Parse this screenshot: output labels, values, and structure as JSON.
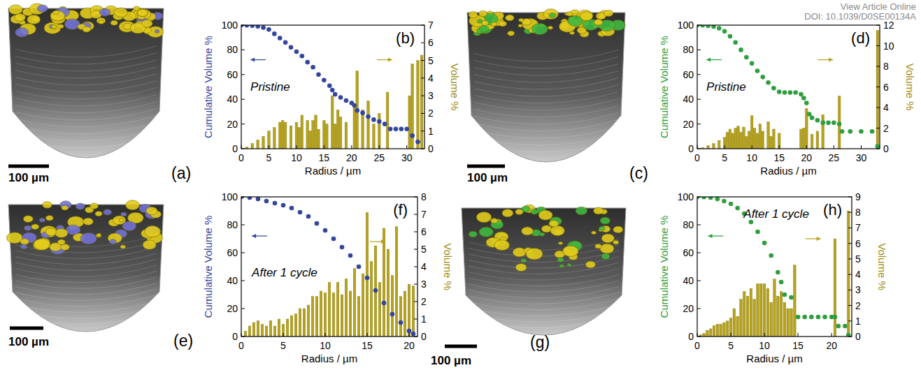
{
  "header": {
    "link": "View Article Online",
    "doi": "DOI: 10.1039/D0SE00134A"
  },
  "images": [
    {
      "label": "(a)",
      "scale_bar": "100 µm"
    },
    {
      "label": "(c)",
      "scale_bar": "100 µm"
    },
    {
      "label": "(e)",
      "scale_bar": "100 µm"
    },
    {
      "label": "(g)",
      "scale_bar": "100 µm"
    }
  ],
  "chart_data": [
    {
      "type": "scatter",
      "panel": "(b)",
      "annotation": "Pristine",
      "x_label": "Radius / µm",
      "y_label": "Cumulative Volume %",
      "y2_label": "Volume %",
      "xlim": [
        0,
        33.2
      ],
      "xticks": [
        0,
        5,
        10,
        15,
        20,
        25,
        30
      ],
      "ylim": [
        0,
        100
      ],
      "yticks": [
        0,
        20,
        40,
        60,
        80,
        100
      ],
      "y2lim": [
        0,
        7
      ],
      "y2ticks": [
        0,
        1,
        2,
        3,
        4,
        5,
        6,
        7
      ],
      "series": [
        {
          "type": "scatter",
          "marker": "circle",
          "color": "#34469c",
          "x": [
            0,
            1,
            2,
            3,
            4,
            5,
            6,
            7,
            8,
            9,
            10,
            11,
            12,
            13,
            14,
            15,
            16,
            16.5,
            17,
            18,
            19,
            20,
            20.5,
            21,
            22,
            23,
            24,
            25,
            26,
            27,
            28,
            29,
            30,
            31,
            32
          ],
          "values": [
            100,
            99.9,
            99.6,
            99,
            98,
            96.5,
            93,
            89.5,
            86,
            82,
            78.5,
            75,
            70,
            66,
            60,
            55.5,
            51,
            47.5,
            44,
            41.5,
            39,
            37,
            35,
            31,
            29,
            26,
            23.5,
            22,
            20,
            16,
            16,
            16,
            16,
            10.5,
            5.5
          ]
        },
        {
          "type": "bar",
          "axis": "y2",
          "color": "#b5a21e",
          "x": [
            1,
            2,
            3,
            4,
            5,
            6,
            7,
            7.5,
            8,
            9,
            10,
            10.5,
            11,
            12,
            12.5,
            13,
            13.5,
            14,
            15,
            15.5,
            16.5,
            17,
            17.5,
            18,
            19,
            20.5,
            21,
            22,
            23,
            24,
            25,
            26.5,
            30.5,
            31,
            32,
            32.7
          ],
          "values": [
            0.1,
            0.3,
            0.5,
            0.7,
            1.0,
            1.2,
            1.5,
            1.6,
            1.5,
            1.3,
            1.5,
            1.2,
            1.9,
            1.6,
            1.0,
            1.6,
            1.9,
            1.1,
            1.6,
            1.4,
            3.0,
            1.4,
            2.2,
            1.8,
            1.5,
            2.4,
            4.4,
            2.2,
            2.7,
            1.4,
            2.0,
            3.2,
            3.0,
            4.8,
            5.0,
            5.3
          ]
        }
      ]
    },
    {
      "type": "scatter",
      "panel": "(d)",
      "annotation": "Pristine",
      "x_label": "Radius / µm",
      "y_label": "Cumulative Volume %",
      "y2_label": "Volume %",
      "xlim": [
        0,
        33.4
      ],
      "xticks": [
        0,
        5,
        10,
        15,
        20,
        25,
        30
      ],
      "ylim": [
        0,
        100
      ],
      "yticks": [
        0,
        20,
        40,
        60,
        80,
        100
      ],
      "y2lim": [
        0,
        12
      ],
      "y2ticks": [
        0,
        2,
        4,
        6,
        8,
        10,
        12
      ],
      "series": [
        {
          "type": "scatter",
          "marker": "circle",
          "color": "#2e9e3e",
          "x": [
            0,
            1,
            2,
            3,
            4,
            5,
            6,
            7,
            8,
            9,
            10,
            11,
            12,
            13,
            14,
            15,
            16,
            17,
            18,
            19,
            19.5,
            20,
            20.5,
            21,
            22,
            23,
            24,
            25,
            26,
            26.5,
            28,
            30,
            32,
            33
          ],
          "values": [
            100,
            99.9,
            99.5,
            98.8,
            97.5,
            95,
            91,
            86,
            80,
            74,
            69,
            63,
            58,
            53.5,
            49,
            46,
            45.5,
            45.5,
            45.5,
            44,
            41,
            37,
            28,
            25,
            23,
            21,
            21,
            21,
            20,
            14,
            14,
            14,
            14,
            2
          ]
        },
        {
          "type": "bar",
          "axis": "y2",
          "color": "#b5a21e",
          "x": [
            1,
            2,
            3,
            4,
            5,
            5.5,
            6,
            6.5,
            7,
            7.5,
            8,
            8.5,
            9,
            9.5,
            10,
            10.5,
            11,
            11.5,
            12,
            13,
            13.5,
            14,
            15,
            19,
            19.5,
            20,
            21,
            22,
            23,
            26,
            33
          ],
          "values": [
            0.1,
            0.3,
            0.5,
            0.8,
            1.1,
            1.6,
            1.9,
            1.5,
            2.0,
            2.2,
            1.6,
            2.1,
            1.2,
            1.7,
            3.2,
            2.0,
            1.5,
            2.4,
            1.7,
            2.6,
            1.2,
            1.9,
            1.5,
            1.9,
            2.0,
            3.9,
            1.4,
            1.7,
            3.3,
            5.1,
            11.5
          ]
        }
      ]
    },
    {
      "type": "scatter",
      "panel": "(f)",
      "annotation": "After 1 cycle",
      "x_label": "Radius / µm",
      "y_label": "Cumulative Volume %",
      "y2_label": "Volume %",
      "xlim": [
        0,
        21
      ],
      "xticks": [
        0,
        5,
        10,
        15,
        20
      ],
      "ylim": [
        0,
        100
      ],
      "yticks": [
        0,
        20,
        40,
        60,
        80,
        100
      ],
      "y2lim": [
        0,
        8
      ],
      "y2ticks": [
        0,
        1,
        2,
        3,
        4,
        5,
        6,
        7,
        8
      ],
      "series": [
        {
          "type": "scatter",
          "marker": "circle",
          "color": "#34469c",
          "x": [
            0,
            1,
            2,
            3,
            4,
            5,
            6,
            7,
            8,
            9,
            10,
            11,
            12,
            13,
            14,
            15,
            16,
            17,
            18,
            19,
            20,
            20.5
          ],
          "values": [
            100,
            99.5,
            98.5,
            97,
            95.5,
            94,
            92,
            89,
            86,
            81,
            76,
            70,
            64,
            58,
            50,
            42,
            33,
            24,
            16,
            10,
            4,
            2
          ]
        },
        {
          "type": "bar",
          "axis": "y2",
          "color": "#b5a21e",
          "x": [
            0.5,
            1,
            1.5,
            2,
            2.5,
            3,
            3.5,
            4,
            4.5,
            5,
            5.5,
            6,
            6.5,
            7,
            7.5,
            8,
            8.5,
            9,
            9.5,
            10,
            10.5,
            11,
            11.5,
            12,
            12.5,
            13,
            13.5,
            14,
            14.5,
            15,
            15.5,
            16,
            16.5,
            17,
            17.5,
            18,
            18.5,
            19,
            19.5,
            20,
            20.5
          ],
          "values": [
            0.3,
            0.6,
            0.8,
            0.9,
            0.7,
            0.6,
            0.9,
            0.6,
            1.0,
            0.7,
            1.0,
            1.2,
            1.3,
            1.6,
            1.6,
            1.8,
            2.3,
            2.3,
            2.6,
            2.5,
            3.1,
            2.5,
            3.1,
            2.4,
            3.3,
            2.6,
            3.9,
            2.3,
            3.6,
            7.1,
            4.3,
            5.2,
            3.1,
            6.2,
            5.0,
            3.5,
            6.3,
            2.3,
            2.6,
            3.0,
            2.9
          ]
        }
      ]
    },
    {
      "type": "scatter",
      "panel": "(h)",
      "annotation": "After 1 cycle",
      "x_label": "Radius / µm",
      "y_label": "Cumulative Volume %",
      "y2_label": "Volume %",
      "xlim": [
        0,
        23
      ],
      "xticks": [
        0,
        5,
        10,
        15,
        20
      ],
      "ylim": [
        0,
        100
      ],
      "yticks": [
        0,
        20,
        40,
        60,
        80,
        100
      ],
      "y2lim": [
        0,
        9
      ],
      "y2ticks": [
        0,
        1,
        2,
        3,
        4,
        5,
        6,
        7,
        8,
        9
      ],
      "series": [
        {
          "type": "scatter",
          "marker": "circle",
          "color": "#2e9e3e",
          "x": [
            0,
            1,
            2,
            3,
            4,
            5,
            6,
            7,
            8,
            9,
            10,
            11,
            12,
            12.5,
            13,
            14,
            15,
            16,
            17,
            18,
            19,
            20,
            20.5,
            21,
            22,
            22.5
          ],
          "values": [
            100,
            99.9,
            99.5,
            98.5,
            97,
            95,
            92,
            88,
            82,
            75,
            67,
            58,
            46,
            39,
            30,
            28,
            14,
            14,
            14,
            14,
            14,
            14,
            14,
            7.5,
            7.5,
            1
          ]
        },
        {
          "type": "bar",
          "axis": "y2",
          "color": "#b5a21e",
          "x": [
            0.5,
            1,
            1.5,
            2,
            2.5,
            3,
            3.5,
            4,
            4.5,
            5,
            5.5,
            6,
            6.5,
            7,
            7.5,
            8,
            8.5,
            9,
            9.5,
            10,
            10.5,
            11,
            11.5,
            12,
            12.5,
            13,
            13.5,
            14,
            14.5,
            20.5,
            22.5
          ],
          "values": [
            0.1,
            0.2,
            0.4,
            0.5,
            0.7,
            0.8,
            0.8,
            0.9,
            1.0,
            1.2,
            1.8,
            1.3,
            2.4,
            2.9,
            2.6,
            3.1,
            2.4,
            3.4,
            3.4,
            3.4,
            3.1,
            2.2,
            3.7,
            2.6,
            2.9,
            2.2,
            1.8,
            1.8,
            4.6,
            6.3,
            8.1
          ]
        }
      ]
    }
  ]
}
